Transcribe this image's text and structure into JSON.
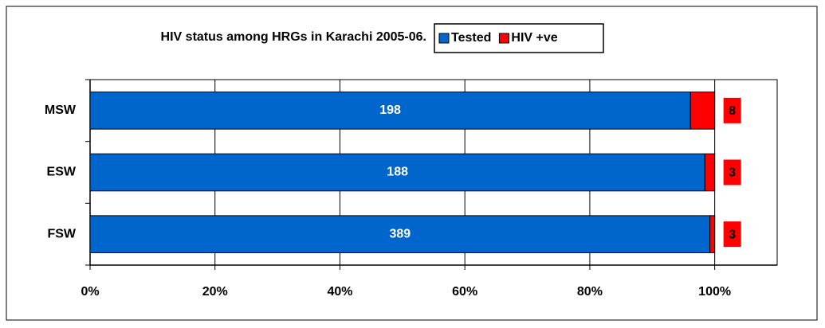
{
  "chart_data": {
    "type": "bar",
    "orientation": "horizontal",
    "stacked": "percent",
    "title": "HIV status among HRGs in Karachi 2005-06.",
    "categories": [
      "MSW",
      "ESW",
      "FSW"
    ],
    "series": [
      {
        "name": "Tested",
        "color": "#0066cc",
        "values": [
          198,
          188,
          389
        ]
      },
      {
        "name": "HIV +ve",
        "color": "#ff0000",
        "values": [
          8,
          3,
          3
        ]
      }
    ],
    "xlim": [
      0,
      110
    ],
    "xticks": [
      {
        "value": 0,
        "label": "0%"
      },
      {
        "value": 20,
        "label": "20%"
      },
      {
        "value": 40,
        "label": "40%"
      },
      {
        "value": 60,
        "label": "60%"
      },
      {
        "value": 80,
        "label": "80%"
      },
      {
        "value": 100,
        "label": "100%"
      }
    ],
    "grid": true,
    "legend": "top-right"
  }
}
